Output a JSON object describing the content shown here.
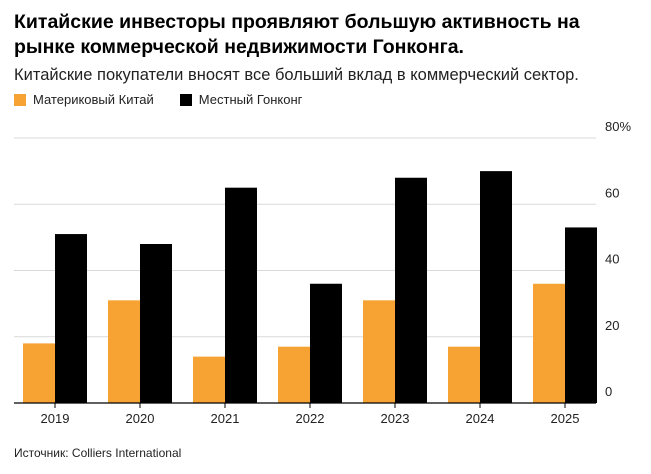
{
  "title": "Китайские инвесторы проявляют большую активность на рынке коммерческой недвижимости Гонконга.",
  "subtitle": "Китайские покупатели вносят все больший вклад в коммерческий сектор.",
  "source": "Источник: Colliers International",
  "colors": {
    "mainland": "#f7a334",
    "local": "#000000",
    "grid": "#d9d9d9"
  },
  "chart_data": {
    "type": "bar",
    "categories": [
      "2019",
      "2020",
      "2021",
      "2022",
      "2023",
      "2024",
      "2025"
    ],
    "series": [
      {
        "name": "Материковый Китай",
        "values": [
          18,
          31,
          14,
          17,
          31,
          17,
          36
        ]
      },
      {
        "name": "Местный Гонконг",
        "values": [
          51,
          48,
          65,
          36,
          68,
          70,
          53
        ]
      }
    ],
    "ylim": [
      0,
      80
    ],
    "yticks": [
      0,
      20,
      40,
      60,
      80
    ],
    "ytick_labels": [
      "0",
      "20",
      "40",
      "60",
      "80%"
    ],
    "grid": true,
    "legend": "top-left"
  }
}
